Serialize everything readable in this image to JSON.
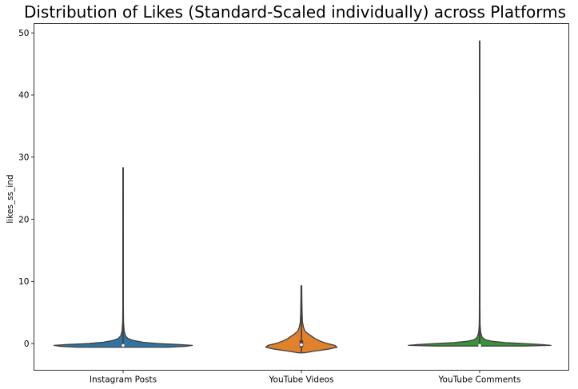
{
  "chart_data": {
    "type": "violin",
    "title": "Distribution of Likes (Standard-Scaled individually) across Platforms",
    "xlabel": "",
    "ylabel": "likes_ss_ind",
    "ylim": [
      -4.3,
      51.5
    ],
    "yticks": [
      0,
      10,
      20,
      30,
      40,
      50
    ],
    "grid": false,
    "categories": [
      "Instagram Posts",
      "YouTube Videos",
      "YouTube Comments"
    ],
    "series": [
      {
        "category": "Instagram Posts",
        "color": "#3274a1",
        "min": -0.6,
        "max": 28.3,
        "median": -0.3,
        "q1": -0.5,
        "q3": -0.05,
        "profile": [
          [
            -0.6,
            0.64
          ],
          [
            -0.45,
            0.88
          ],
          [
            -0.3,
            0.97
          ],
          [
            -0.15,
            0.78
          ],
          [
            0.0,
            0.48
          ],
          [
            0.2,
            0.28
          ],
          [
            0.5,
            0.14
          ],
          [
            0.8,
            0.07
          ],
          [
            1.2,
            0.035
          ],
          [
            2.0,
            0.015
          ],
          [
            3.5,
            0.006
          ],
          [
            6.0,
            0.004
          ],
          [
            28.3,
            0.003
          ]
        ]
      },
      {
        "category": "YouTube Videos",
        "color": "#e1812c",
        "min": -1.5,
        "max": 9.3,
        "median": -0.2,
        "q1": -0.6,
        "q3": 0.5,
        "profile": [
          [
            -1.5,
            0.04
          ],
          [
            -1.2,
            0.2
          ],
          [
            -0.9,
            0.38
          ],
          [
            -0.6,
            0.5
          ],
          [
            -0.3,
            0.47
          ],
          [
            0.0,
            0.36
          ],
          [
            0.4,
            0.26
          ],
          [
            0.8,
            0.19
          ],
          [
            1.2,
            0.14
          ],
          [
            1.6,
            0.09
          ],
          [
            2.0,
            0.05
          ],
          [
            2.6,
            0.03
          ],
          [
            3.5,
            0.015
          ],
          [
            5.0,
            0.01
          ],
          [
            7.0,
            0.007
          ],
          [
            9.3,
            0.005
          ]
        ]
      },
      {
        "category": "YouTube Comments",
        "color": "#3a923a",
        "min": -0.4,
        "max": 48.7,
        "median": -0.3,
        "q1": -0.35,
        "q3": -0.2,
        "profile": [
          [
            -0.4,
            0.62
          ],
          [
            -0.3,
            1.0
          ],
          [
            -0.15,
            0.86
          ],
          [
            0.0,
            0.6
          ],
          [
            0.15,
            0.36
          ],
          [
            0.35,
            0.18
          ],
          [
            0.6,
            0.08
          ],
          [
            1.0,
            0.035
          ],
          [
            1.8,
            0.014
          ],
          [
            3.0,
            0.006
          ],
          [
            6.0,
            0.004
          ],
          [
            48.7,
            0.003
          ]
        ]
      }
    ]
  }
}
